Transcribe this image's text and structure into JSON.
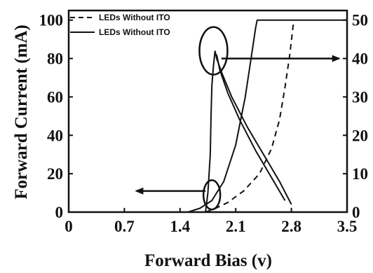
{
  "chart_data": {
    "type": "line",
    "xlabel": "Forward Bias (v)",
    "ylabel": "Forward Current (mA)",
    "x_ticks": [
      "0",
      "0.7",
      "1.4",
      "2.1",
      "2.8",
      "3.5"
    ],
    "y_left_ticks": [
      "0",
      "20",
      "40",
      "60",
      "80",
      "100"
    ],
    "y_right_ticks": [
      "0",
      "10",
      "20",
      "30",
      "40",
      "50"
    ],
    "xlim": [
      0,
      3.5
    ],
    "ylim_left": [
      0,
      105
    ],
    "ylim_right": [
      0,
      52.5
    ],
    "grid": false,
    "legend_position": "top-left",
    "legend": [
      {
        "label": "LEDs Without ITO",
        "style": "dashed"
      },
      {
        "label": "LEDs Without ITO",
        "style": "solid"
      }
    ],
    "series": [
      {
        "style": "dashed",
        "axis": "left",
        "role": "current",
        "points": [
          [
            1.72,
            0
          ],
          [
            1.85,
            2
          ],
          [
            2.0,
            5
          ],
          [
            2.2,
            11
          ],
          [
            2.4,
            20
          ],
          [
            2.55,
            33
          ],
          [
            2.65,
            48
          ],
          [
            2.72,
            65
          ],
          [
            2.78,
            82
          ],
          [
            2.83,
            100
          ]
        ]
      },
      {
        "style": "solid",
        "axis": "left",
        "role": "current",
        "points": [
          [
            1.5,
            0
          ],
          [
            1.65,
            2
          ],
          [
            1.8,
            6
          ],
          [
            1.95,
            16
          ],
          [
            2.1,
            35
          ],
          [
            2.22,
            60
          ],
          [
            2.3,
            82
          ],
          [
            2.35,
            96
          ],
          [
            2.37,
            100
          ],
          [
            3.5,
            100
          ]
        ]
      },
      {
        "style": "solid",
        "axis": "right",
        "role": "output",
        "points": [
          [
            1.72,
            0
          ],
          [
            1.75,
            5
          ],
          [
            1.78,
            15
          ],
          [
            1.79,
            25
          ],
          [
            1.8,
            33
          ],
          [
            1.82,
            38
          ],
          [
            1.84,
            42
          ]
        ]
      },
      {
        "style": "solid",
        "axis": "right",
        "role": "output",
        "points": [
          [
            2.8,
            2
          ],
          [
            2.65,
            8
          ],
          [
            2.45,
            15
          ],
          [
            2.25,
            22
          ],
          [
            2.05,
            30
          ],
          [
            1.93,
            36
          ],
          [
            1.86,
            40
          ],
          [
            1.84,
            42
          ]
        ]
      },
      {
        "style": "solid",
        "axis": "right",
        "role": "output",
        "points": [
          [
            2.72,
            3
          ],
          [
            2.55,
            9
          ],
          [
            2.35,
            16
          ],
          [
            2.15,
            24
          ],
          [
            2.0,
            31
          ],
          [
            1.9,
            37
          ],
          [
            1.86,
            41
          ]
        ]
      }
    ],
    "annotations": [
      {
        "type": "ellipse",
        "center": [
          1.82,
          42
        ],
        "axis": "right",
        "meaning": "upper curves refer to right axis"
      },
      {
        "type": "arrow",
        "from": [
          1.92,
          40
        ],
        "to": [
          3.4,
          40
        ],
        "axis": "right"
      },
      {
        "type": "ellipse",
        "center": [
          1.8,
          9
        ],
        "axis": "left",
        "meaning": "lower curves refer to left axis"
      },
      {
        "type": "arrow",
        "from": [
          1.72,
          11
        ],
        "to": [
          0.85,
          11
        ],
        "axis": "left"
      }
    ]
  }
}
